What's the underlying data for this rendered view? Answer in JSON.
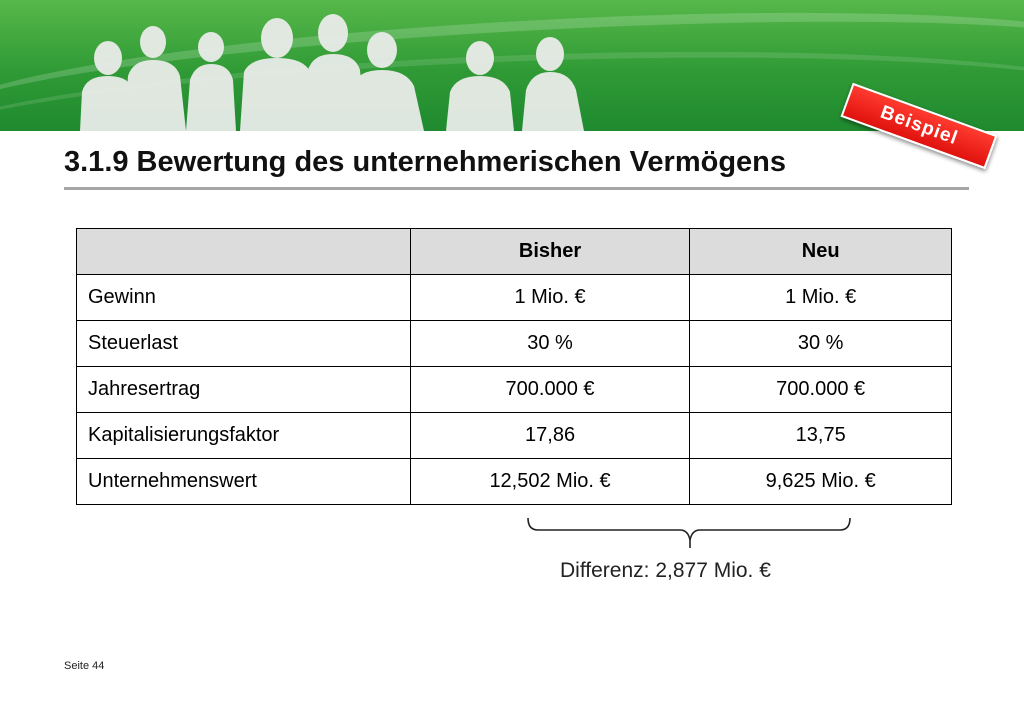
{
  "header": {
    "badge": "Beispiel",
    "title": "3.1.9 Bewertung des unternehmerischen Vermögens",
    "banner_color": "#3aa63c",
    "badge_color": "#e8140f"
  },
  "table": {
    "columns": [
      "",
      "Bisher",
      "Neu"
    ],
    "rows": [
      {
        "label": "Gewinn",
        "bisher": "1 Mio. €",
        "neu": "1 Mio. €"
      },
      {
        "label": "Steuerlast",
        "bisher": "30 %",
        "neu": "30 %"
      },
      {
        "label": "Jahresertrag",
        "bisher": "700.000 €",
        "neu": "700.000 €"
      },
      {
        "label": "Kapitalisierungsfaktor",
        "bisher": "17,86",
        "neu": "13,75"
      },
      {
        "label": "Unternehmenswert",
        "bisher": "12,502 Mio. €",
        "neu": "9,625 Mio. €"
      }
    ]
  },
  "difference": "Differenz: 2,877 Mio. €",
  "footer": {
    "page": "Seite 44"
  }
}
